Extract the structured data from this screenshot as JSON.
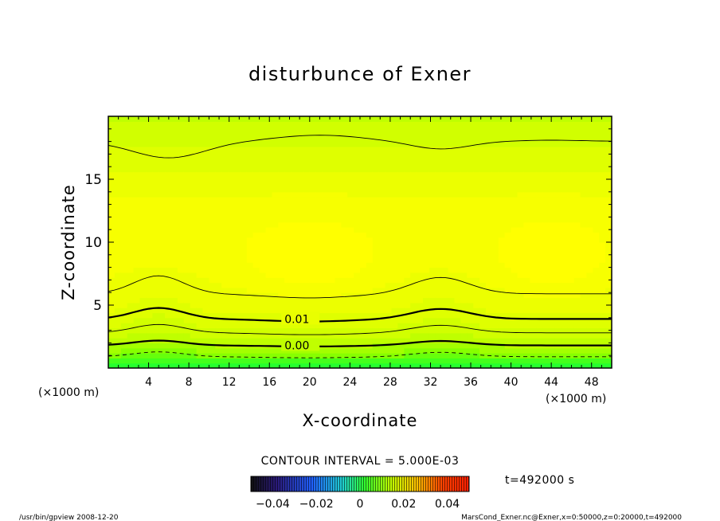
{
  "chart_data": {
    "type": "contour",
    "title": "disturbunce of Exner",
    "xlabel": "X-coordinate",
    "ylabel": "Z-coordinate",
    "x_unit": "(×1000 m)",
    "y_unit": "(×1000 m)",
    "xlim": [
      0,
      50
    ],
    "ylim": [
      0,
      20
    ],
    "x_ticks": [
      4,
      8,
      12,
      16,
      20,
      24,
      28,
      32,
      36,
      40,
      44,
      48
    ],
    "y_ticks": [
      5,
      10,
      15
    ],
    "contour_interval_label": "CONTOUR INTERVAL = 5.000E-03",
    "contour_interval": 0.005,
    "colorbar": {
      "range": [
        -0.05,
        0.05
      ],
      "tick_values": [
        -0.04,
        -0.02,
        0,
        0.02,
        0.04
      ],
      "tick_labels": [
        "−0.04",
        "−0.02",
        "0",
        "0.02",
        "0.04"
      ]
    },
    "contour_labels": [
      {
        "text": "0.01",
        "x": 17.5,
        "z": 3.9
      },
      {
        "text": "0.00",
        "x": 17.5,
        "z": 1.8
      }
    ],
    "contours": [
      {
        "level": -0.005,
        "style": "dashed",
        "base_z": 0.9,
        "bump": 0.35
      },
      {
        "level": 0.0,
        "style": "bold",
        "base_z": 1.8,
        "bump": 0.35
      },
      {
        "level": 0.005,
        "style": "thin",
        "base_z": 2.8,
        "bump": 0.6
      },
      {
        "level": 0.01,
        "style": "bold",
        "base_z": 3.9,
        "bump": 0.8
      },
      {
        "level": 0.015,
        "style": "thin",
        "base_z": 5.9,
        "bump": 1.3
      },
      {
        "level": 0.015,
        "style": "thin-top",
        "base_z": 18.0,
        "bump": 1.3
      }
    ],
    "time_label": "t=492000 s",
    "footer_left": "/usr/bin/gpview   2008-12-20",
    "footer_right": "MarsCond_Exner.nc@Exner,x=0:50000,z=0:20000,t=492000"
  },
  "colors": {
    "background": "#ffffff",
    "axis": "#000000",
    "field_low": "#00ff80",
    "field_mid": "#7fff00",
    "field_high": "#ffff00"
  }
}
